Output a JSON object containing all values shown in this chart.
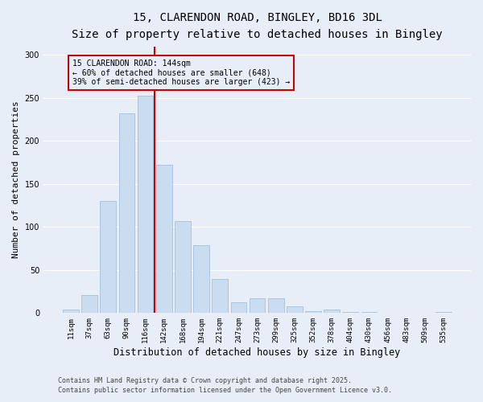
{
  "title1": "15, CLARENDON ROAD, BINGLEY, BD16 3DL",
  "title2": "Size of property relative to detached houses in Bingley",
  "xlabel": "Distribution of detached houses by size in Bingley",
  "ylabel": "Number of detached properties",
  "categories": [
    "11sqm",
    "37sqm",
    "63sqm",
    "90sqm",
    "116sqm",
    "142sqm",
    "168sqm",
    "194sqm",
    "221sqm",
    "247sqm",
    "273sqm",
    "299sqm",
    "325sqm",
    "352sqm",
    "378sqm",
    "404sqm",
    "430sqm",
    "456sqm",
    "483sqm",
    "509sqm",
    "535sqm"
  ],
  "values": [
    4,
    21,
    130,
    232,
    253,
    172,
    107,
    79,
    40,
    12,
    17,
    17,
    8,
    2,
    4,
    1,
    1,
    0,
    0,
    0,
    1
  ],
  "bar_color": "#c9dcf0",
  "bar_edge_color": "#9ab8d8",
  "vline_color": "#cc0000",
  "annotation_box_text": "15 CLARENDON ROAD: 144sqm\n← 60% of detached houses are smaller (648)\n39% of semi-detached houses are larger (423) →",
  "annotation_box_color": "#cc0000",
  "background_color": "#e8eef8",
  "grid_color": "#ffffff",
  "footer_line1": "Contains HM Land Registry data © Crown copyright and database right 2025.",
  "footer_line2": "Contains public sector information licensed under the Open Government Licence v3.0.",
  "ylim": [
    0,
    310
  ],
  "yticks": [
    0,
    50,
    100,
    150,
    200,
    250,
    300
  ],
  "vline_pos": 4.5,
  "title_fontsize": 10,
  "subtitle_fontsize": 9,
  "tick_fontsize": 6.5,
  "ylabel_fontsize": 8,
  "xlabel_fontsize": 8.5,
  "footer_fontsize": 6
}
